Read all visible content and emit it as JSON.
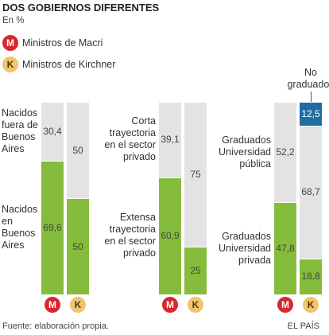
{
  "title": "DOS GOBIERNOS DIFERENTES",
  "subtitle": "En %",
  "legend": [
    {
      "badge": "M",
      "label": "Ministros de Macri",
      "color": "#d7272f",
      "text_color": "#ffffff"
    },
    {
      "badge": "K",
      "label": "Ministros de Kirchner",
      "color": "#f2c46d",
      "text_color": "#4a3a10"
    }
  ],
  "source": "Fuente: elaboración propia.",
  "credit": "EL PAÍS",
  "chart_data": [
    {
      "type": "bar",
      "stacked": true,
      "categories": [
        "M",
        "K"
      ],
      "ylim": [
        0,
        100
      ],
      "series": [
        {
          "name": "Nacidos en Buenos Aires",
          "color": "#86bc3b",
          "values": [
            69.6,
            50
          ],
          "value_labels": [
            "69,6",
            "50"
          ]
        },
        {
          "name": "Nacidos fuera de Buenos Aires",
          "color": "#e3e3e3",
          "values": [
            30.4,
            50
          ],
          "value_labels": [
            "30,4",
            "50"
          ]
        }
      ]
    },
    {
      "type": "bar",
      "stacked": true,
      "categories": [
        "M",
        "K"
      ],
      "ylim": [
        0,
        100
      ],
      "series": [
        {
          "name": "Extensa trayectoria en el sector privado",
          "color": "#86bc3b",
          "values": [
            60.9,
            25
          ],
          "value_labels": [
            "60,9",
            "25"
          ]
        },
        {
          "name": "Corta trayectoria en el sector privado",
          "color": "#e3e3e3",
          "values": [
            39.1,
            75
          ],
          "value_labels": [
            "39,1",
            "75"
          ]
        }
      ]
    },
    {
      "type": "bar",
      "stacked": true,
      "categories": [
        "M",
        "K"
      ],
      "ylim": [
        0,
        100
      ],
      "series": [
        {
          "name": "Graduados Universidad privada",
          "color": "#86bc3b",
          "values": [
            47.8,
            18.8
          ],
          "value_labels": [
            "47,8",
            "18,8"
          ]
        },
        {
          "name": "Graduados Universidad pública",
          "color": "#e3e3e3",
          "values": [
            52.2,
            68.7
          ],
          "value_labels": [
            "52,2",
            "68,7"
          ]
        },
        {
          "name": "No graduados",
          "color": "#1f6ea3",
          "values": [
            null,
            12.5
          ],
          "value_labels": [
            null,
            "12,5"
          ]
        }
      ]
    }
  ]
}
